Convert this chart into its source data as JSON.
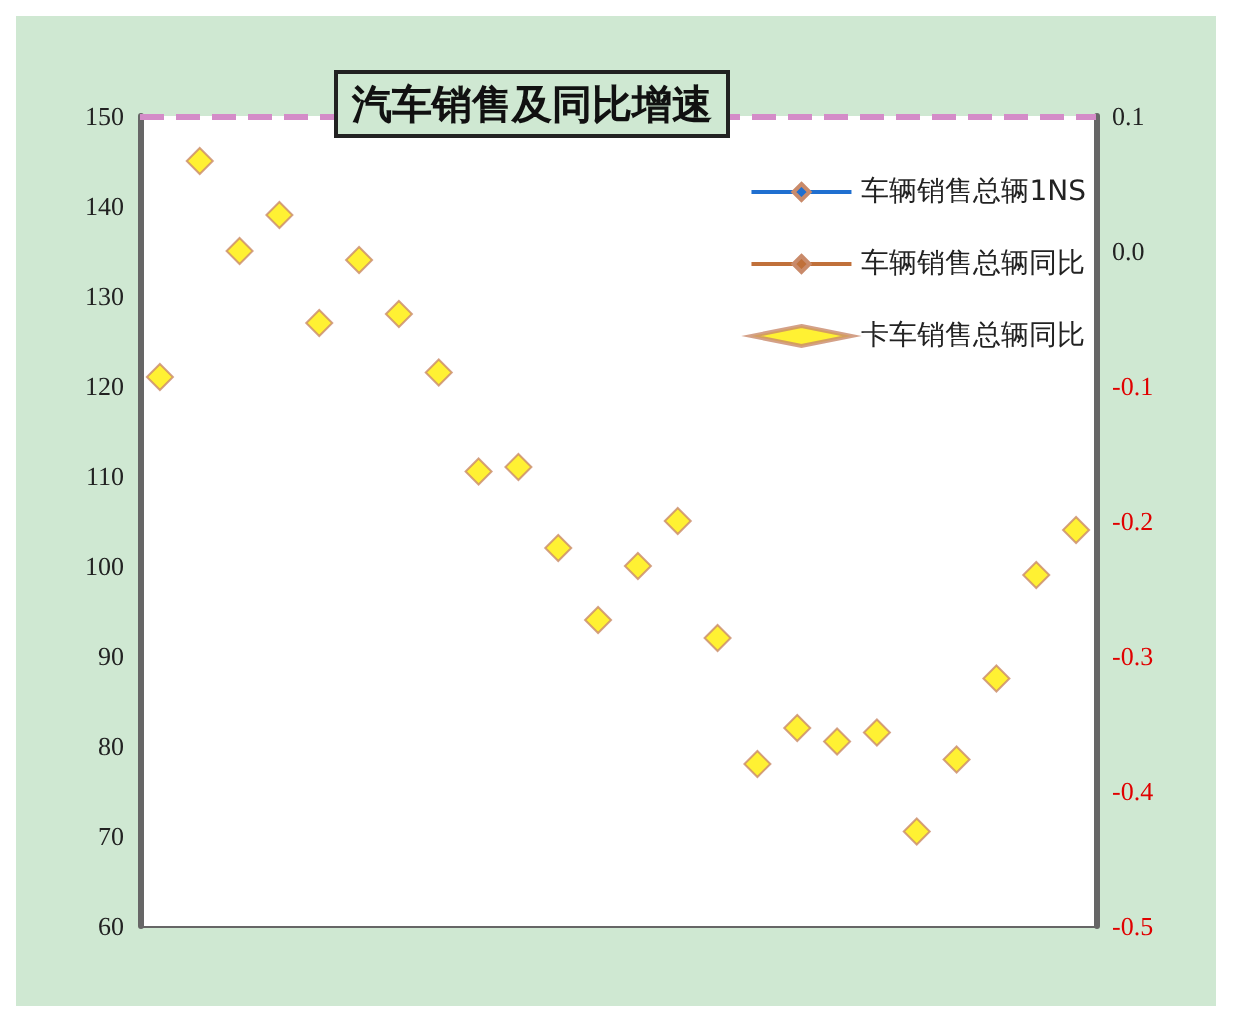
{
  "chart_data": {
    "type": "scatter",
    "title": "汽车销售及同比增速",
    "categories": [
      null,
      null,
      null,
      null,
      null,
      null,
      null,
      null,
      null,
      null,
      null,
      null,
      null,
      null,
      null,
      null,
      null,
      null,
      null,
      null,
      null,
      null,
      null,
      null
    ],
    "series": [
      {
        "name": "车辆销售总辆1NS",
        "type": "line",
        "color": "#1f6fd0",
        "values": [
          null,
          null,
          null,
          null,
          null,
          null,
          null,
          null,
          null,
          null,
          null,
          null,
          null,
          null,
          null,
          null,
          null,
          null,
          null,
          null,
          null,
          null,
          null,
          null
        ]
      },
      {
        "name": "车辆销售总辆同比",
        "type": "line",
        "color": "#c0703a",
        "values": [
          null,
          null,
          null,
          null,
          null,
          null,
          null,
          null,
          null,
          null,
          null,
          null,
          null,
          null,
          null,
          null,
          null,
          null,
          null,
          null,
          null,
          null,
          null,
          null
        ]
      },
      {
        "name": "卡车销售总辆同比",
        "type": "scatter",
        "color": "#ffee00",
        "values": [
          121,
          145,
          135,
          139,
          127,
          134,
          128,
          121.5,
          110.5,
          111,
          102,
          94,
          100,
          105,
          92,
          78,
          82,
          80.5,
          81.5,
          70.5,
          78.5,
          87.5,
          99,
          104
        ]
      }
    ],
    "ylim": [
      60,
      150
    ],
    "yticks": [
      60,
      70,
      80,
      90,
      100,
      110,
      120,
      130,
      140,
      150
    ],
    "y2lim": [
      -0.5,
      0.1
    ],
    "y2ticks": [
      {
        "value": -0.5,
        "label": "-0.5"
      },
      {
        "value": -0.4,
        "label": "-0.4"
      },
      {
        "value": -0.3,
        "label": "-0.3"
      },
      {
        "value": -0.2,
        "label": "-0.2"
      },
      {
        "value": -0.1,
        "label": "-0.1"
      },
      {
        "value": 0,
        "label": "0.0"
      },
      {
        "value": 0.1,
        "label": "0.1"
      }
    ],
    "ref_lines": [
      {
        "axis": "y",
        "value": 150,
        "color": "#d48cc8",
        "line_style": "dashed"
      }
    ],
    "marker": "diamond",
    "legend": "top right",
    "grid": false
  }
}
